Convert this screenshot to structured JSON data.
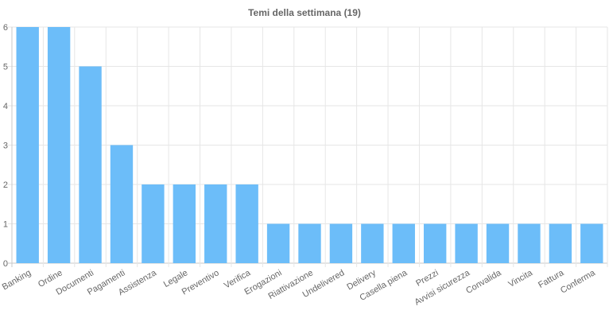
{
  "chart_data": {
    "type": "bar",
    "title": "Temi della settimana (19)",
    "xlabel": "",
    "ylabel": "",
    "categories": [
      "Banking",
      "Ordine",
      "Documenti",
      "Pagamenti",
      "Assistenza",
      "Legale",
      "Preventivo",
      "Verifica",
      "Erogazioni",
      "Riattivazione",
      "Undelivered",
      "Delivery",
      "Casella piena",
      "Prezzi",
      "Avvisi sicurezza",
      "Convalida",
      "Vincita",
      "Fattura",
      "Conferma"
    ],
    "values": [
      6,
      6,
      5,
      3,
      2,
      2,
      2,
      2,
      1,
      1,
      1,
      1,
      1,
      1,
      1,
      1,
      1,
      1,
      1
    ],
    "ylim": [
      0,
      6
    ],
    "yticks": [
      "0",
      "1",
      "2",
      "3",
      "4",
      "5",
      "6"
    ],
    "grid": true,
    "legend": "none",
    "bar_color": "#6cbdf9",
    "grid_color": "#e6e6e6",
    "text_color": "#666666"
  }
}
